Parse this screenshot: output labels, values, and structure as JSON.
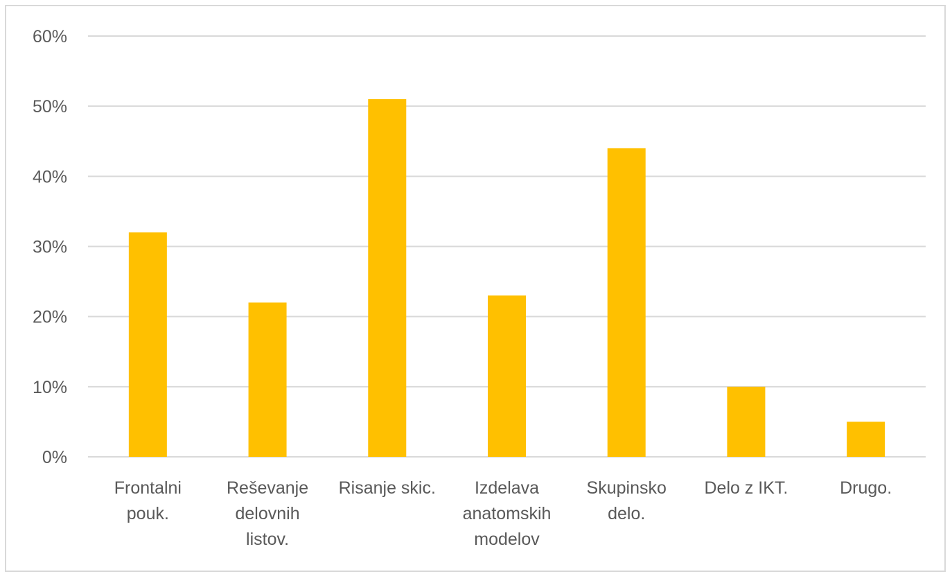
{
  "chart_data": {
    "type": "bar",
    "categories": [
      [
        "Frontalni",
        "pouk."
      ],
      [
        "Reševanje",
        "delovnih",
        "listov."
      ],
      [
        "Risanje skic."
      ],
      [
        "Izdelava",
        "anatomskih",
        "modelov"
      ],
      [
        "Skupinsko",
        "delo."
      ],
      [
        "Delo z IKT."
      ],
      [
        "Drugo."
      ]
    ],
    "values": [
      32,
      22,
      51,
      23,
      44,
      10,
      5
    ],
    "ylim": [
      0,
      60
    ],
    "yticks": [
      0,
      10,
      20,
      30,
      40,
      50,
      60
    ],
    "ytick_labels": [
      "0%",
      "10%",
      "20%",
      "30%",
      "40%",
      "50%",
      "60%"
    ],
    "grid": true,
    "legend": "none",
    "colors": {
      "bar": "#FFC000",
      "grid": "#d9d9d9",
      "text": "#595959"
    }
  }
}
